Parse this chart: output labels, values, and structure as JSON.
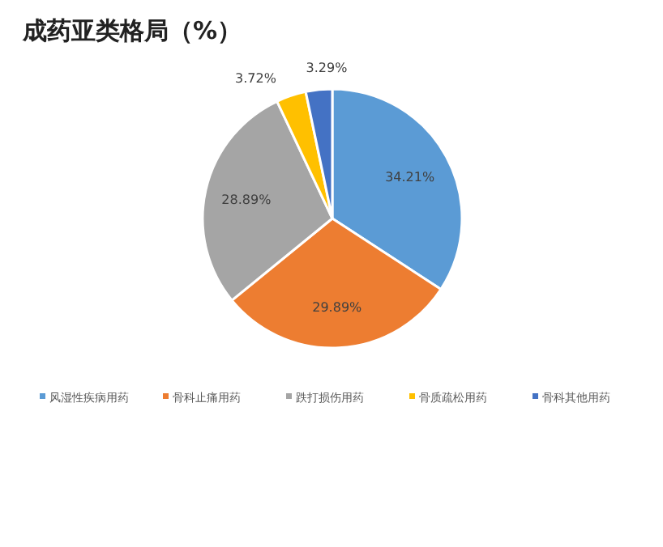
{
  "chart_data": {
    "type": "pie",
    "title": "成药亚类格局（%）",
    "categories": [
      "风湿性疾病用药",
      "骨科止痛用药",
      "跌打损伤用药",
      "骨质疏松用药",
      "骨科其他用药"
    ],
    "values": [
      34.21,
      29.89,
      28.89,
      3.72,
      3.29
    ],
    "colors": [
      "#5b9bd5",
      "#ed7d31",
      "#a5a5a5",
      "#ffc000",
      "#4472c4"
    ],
    "value_labels": [
      "34.21%",
      "29.89%",
      "28.89%",
      "3.72%",
      "3.29%"
    ],
    "legend": "bottom"
  }
}
